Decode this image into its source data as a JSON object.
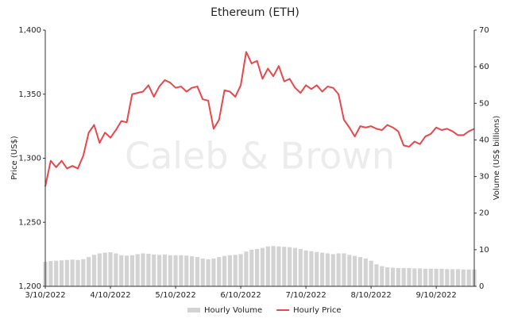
{
  "chart_data": {
    "type": "combo",
    "title": "Ethereum (ETH)",
    "watermark": "Caleb & Brown",
    "y_label": "Price (US$)",
    "y2_label": "Volume (US$ billions)",
    "categories": [
      "3/10/2022",
      null,
      null,
      null,
      null,
      null,
      null,
      null,
      null,
      null,
      null,
      null,
      "4/10/2022",
      null,
      null,
      null,
      null,
      null,
      null,
      null,
      null,
      null,
      null,
      null,
      "5/10/2022",
      null,
      null,
      null,
      null,
      null,
      null,
      null,
      null,
      null,
      null,
      null,
      "6/10/2022",
      null,
      null,
      null,
      null,
      null,
      null,
      null,
      null,
      null,
      null,
      null,
      "7/10/2022",
      null,
      null,
      null,
      null,
      null,
      null,
      null,
      null,
      null,
      null,
      null,
      "8/10/2022",
      null,
      null,
      null,
      null,
      null,
      null,
      null,
      null,
      null,
      null,
      null,
      "9/10/2022",
      null,
      null,
      null,
      null,
      null,
      null,
      null
    ],
    "ylim": [
      1200,
      1400
    ],
    "yticks": [
      {
        "value": 1200,
        "label": "1,200"
      },
      {
        "value": 1250,
        "label": "1,250"
      },
      {
        "value": 1300,
        "label": "1,300"
      },
      {
        "value": 1350,
        "label": "1,350"
      },
      {
        "value": 1400,
        "label": "1,400"
      }
    ],
    "y2lim": [
      0,
      70
    ],
    "y2ticks": [
      0,
      10,
      20,
      30,
      40,
      50,
      60,
      70
    ],
    "legend": "bottom",
    "series": [
      {
        "name": "Hourly Volume",
        "type": "bar",
        "axis": "y2",
        "color": "#d3d3d3",
        "values": [
          6.7,
          6.9,
          7.0,
          7.1,
          7.2,
          7.3,
          7.2,
          7.4,
          8.0,
          8.6,
          9.0,
          9.2,
          9.3,
          9.0,
          8.5,
          8.4,
          8.5,
          8.8,
          9.0,
          8.9,
          8.7,
          8.6,
          8.7,
          8.5,
          8.5,
          8.5,
          8.4,
          8.2,
          8.0,
          7.6,
          7.4,
          7.6,
          8.0,
          8.3,
          8.5,
          8.6,
          8.8,
          9.5,
          10.0,
          10.2,
          10.5,
          10.9,
          11.0,
          10.9,
          10.8,
          10.7,
          10.5,
          10.2,
          9.8,
          9.6,
          9.4,
          9.2,
          9.0,
          8.8,
          9.0,
          9.0,
          8.6,
          8.3,
          8.0,
          7.6,
          7.0,
          6.0,
          5.5,
          5.2,
          5.1,
          5.0,
          5.0,
          5.0,
          4.9,
          4.9,
          4.8,
          4.8,
          4.8,
          4.8,
          4.7,
          4.7,
          4.7,
          4.6,
          4.6,
          4.6
        ]
      },
      {
        "name": "Hourly Price",
        "type": "line",
        "color": "#e8474c",
        "values": [
          1278,
          1298,
          1293,
          1298,
          1292,
          1294,
          1292,
          1302,
          1320,
          1326,
          1312,
          1320,
          1316,
          1322,
          1329,
          1328,
          1350,
          1351,
          1352,
          1357,
          1348,
          1356,
          1361,
          1359,
          1355,
          1356,
          1352,
          1355,
          1356,
          1346,
          1345,
          1323,
          1330,
          1353,
          1352,
          1348,
          1357,
          1383,
          1374,
          1376,
          1362,
          1370,
          1364,
          1372,
          1360,
          1362,
          1355,
          1351,
          1357,
          1354,
          1357,
          1352,
          1356,
          1355,
          1350,
          1330,
          1324,
          1317,
          1325,
          1324,
          1325,
          1323,
          1322,
          1326,
          1324,
          1321,
          1310,
          1309,
          1313,
          1311,
          1317,
          1319,
          1324,
          1322,
          1323,
          1321,
          1318,
          1318,
          1321,
          1323
        ]
      }
    ]
  }
}
